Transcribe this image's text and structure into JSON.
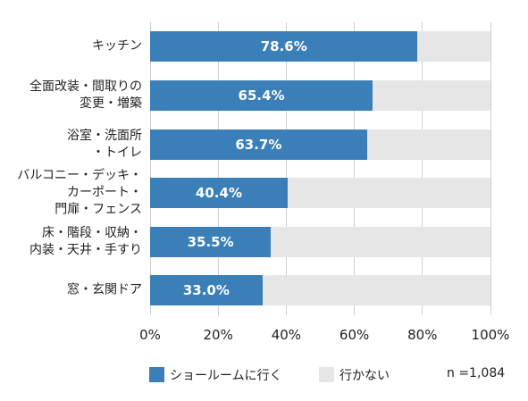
{
  "chart_data": {
    "type": "stacked-bar-horizontal",
    "categories": [
      "キッチン",
      "全面改装・間取りの\n変更・増築",
      "浴室・洗面所\n・トイレ",
      "バルコニー・デッキ・\nカーポート・\n門扉・フェンス",
      "床・階段・収納・\n内装・天井・手すり",
      "窓・玄関ドア"
    ],
    "series": [
      {
        "name": "ショールームに行く",
        "color": "#3a7fb8",
        "values": [
          78.6,
          65.4,
          63.7,
          40.4,
          35.5,
          33.0
        ],
        "value_labels": [
          "78.6%",
          "65.4%",
          "63.7%",
          "40.4%",
          "35.5%",
          "33.0%"
        ]
      },
      {
        "name": "行かない",
        "color": "#e6e6e6",
        "values": [
          21.4,
          34.6,
          36.3,
          59.6,
          64.5,
          67.0
        ]
      }
    ],
    "xlim": [
      0,
      100
    ],
    "xticks": [
      {
        "value": 0,
        "label": "0%"
      },
      {
        "value": 20,
        "label": "20%"
      },
      {
        "value": 40,
        "label": "40%"
      },
      {
        "value": 60,
        "label": "60%"
      },
      {
        "value": 80,
        "label": "80%"
      },
      {
        "value": 100,
        "label": "100%"
      }
    ],
    "grid": true,
    "annotation": "n =1,084"
  }
}
